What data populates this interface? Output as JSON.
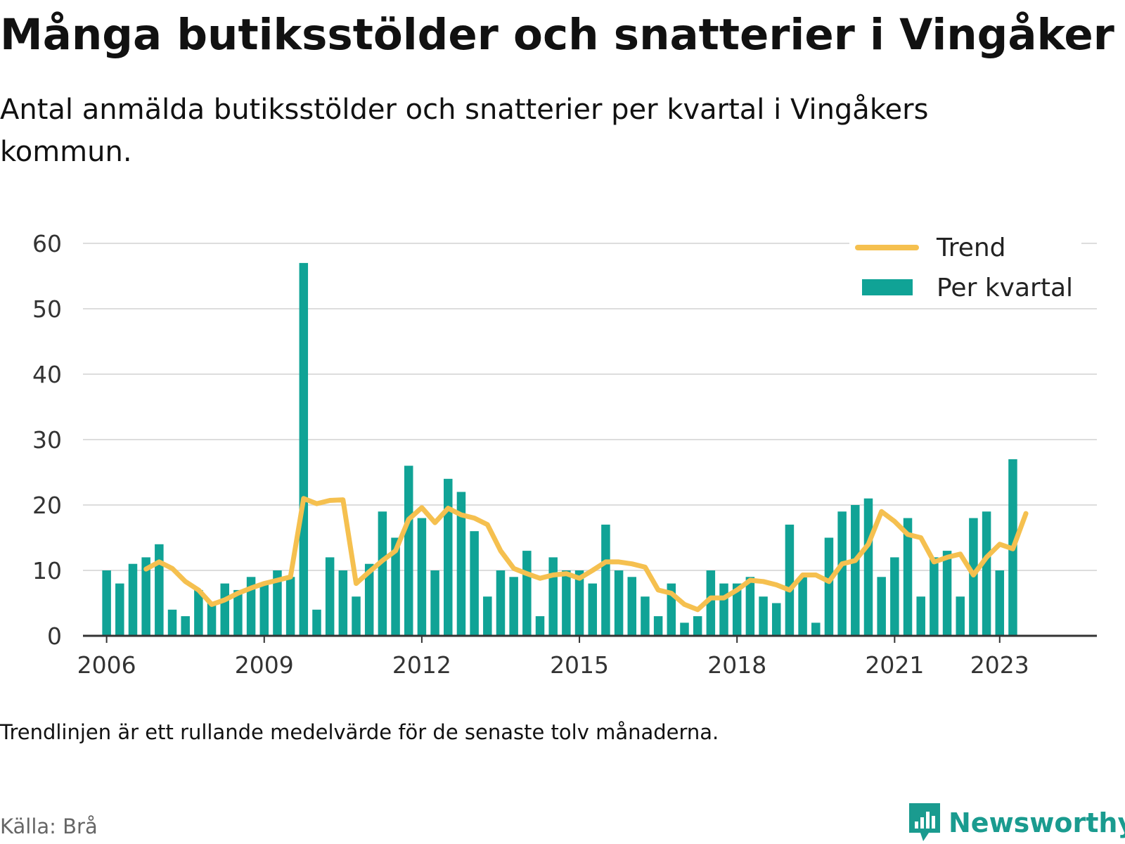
{
  "title": "Många butiksstölder och snatterier i Vingåker",
  "subtitle": "Antal anmälda butiksstölder och snatterier per kvartal i Vingåkers kommun.",
  "footnote": "Trendlinjen är ett rullande medelvärde för de senaste tolv månaderna.",
  "source": "Källa: Brå",
  "brand": "Newsworthy",
  "colors": {
    "bars": "#10a396",
    "trend": "#f5c04f",
    "grid": "#dddddd",
    "axis": "#333333"
  },
  "chart_data": {
    "type": "bar",
    "ylim": [
      0,
      60
    ],
    "yticks": [
      0,
      10,
      20,
      30,
      40,
      50,
      60
    ],
    "xticks": [
      {
        "label": "2006",
        "year": 2006.0
      },
      {
        "label": "2009",
        "year": 2009.0
      },
      {
        "label": "2012",
        "year": 2012.0
      },
      {
        "label": "2015",
        "year": 2015.0
      },
      {
        "label": "2018",
        "year": 2018.0
      },
      {
        "label": "2021",
        "year": 2021.0
      },
      {
        "label": "2023",
        "year": 2023.0
      }
    ],
    "grid": true,
    "legend_position": "top-right",
    "series": [
      {
        "name": "Per kvartal",
        "type": "bar",
        "x": [
          2006.0,
          2006.25,
          2006.5,
          2006.75,
          2007.0,
          2007.25,
          2007.5,
          2007.75,
          2008.0,
          2008.25,
          2008.5,
          2008.75,
          2009.0,
          2009.25,
          2009.5,
          2009.75,
          2010.0,
          2010.25,
          2010.5,
          2010.75,
          2011.0,
          2011.25,
          2011.5,
          2011.75,
          2012.0,
          2012.25,
          2012.5,
          2012.75,
          2013.0,
          2013.25,
          2013.5,
          2013.75,
          2014.0,
          2014.25,
          2014.5,
          2014.75,
          2015.0,
          2015.25,
          2015.5,
          2015.75,
          2016.0,
          2016.25,
          2016.5,
          2016.75,
          2017.0,
          2017.25,
          2017.5,
          2017.75,
          2018.0,
          2018.25,
          2018.5,
          2018.75,
          2019.0,
          2019.25,
          2019.5,
          2019.75,
          2020.0,
          2020.25,
          2020.5,
          2020.75,
          2021.0,
          2021.25,
          2021.5,
          2021.75,
          2022.0,
          2022.25,
          2022.5,
          2022.75,
          2023.0,
          2023.25,
          2023.5
        ],
        "values": [
          10,
          8,
          11,
          12,
          14,
          4,
          3,
          7,
          5,
          8,
          7,
          9,
          8,
          10,
          9,
          57,
          4,
          12,
          10,
          6,
          11,
          19,
          15,
          26,
          18,
          10,
          24,
          22,
          16,
          6,
          10,
          9,
          13,
          3,
          12,
          10,
          10,
          8,
          17,
          10,
          9,
          6,
          3,
          8,
          2,
          3,
          10,
          8,
          8,
          9,
          6,
          5,
          17,
          9,
          2,
          15,
          19,
          20,
          21,
          9,
          12,
          18,
          6,
          12,
          13,
          6,
          18,
          19,
          10,
          27,
          0
        ]
      },
      {
        "name": "Trend",
        "type": "line",
        "x": [
          2006.75,
          2007.0,
          2007.25,
          2007.5,
          2007.75,
          2008.0,
          2008.25,
          2008.5,
          2008.75,
          2009.0,
          2009.25,
          2009.5,
          2009.75,
          2010.0,
          2010.25,
          2010.5,
          2010.75,
          2011.0,
          2011.25,
          2011.5,
          2011.75,
          2012.0,
          2012.25,
          2012.5,
          2012.75,
          2013.0,
          2013.25,
          2013.5,
          2013.75,
          2014.0,
          2014.25,
          2014.5,
          2014.75,
          2015.0,
          2015.25,
          2015.5,
          2015.75,
          2016.0,
          2016.25,
          2016.5,
          2016.75,
          2017.0,
          2017.25,
          2017.5,
          2017.75,
          2018.0,
          2018.25,
          2018.5,
          2018.75,
          2019.0,
          2019.25,
          2019.5,
          2019.75,
          2020.0,
          2020.25,
          2020.5,
          2020.75,
          2021.0,
          2021.25,
          2021.5,
          2021.75,
          2022.0,
          2022.25,
          2022.5,
          2022.75,
          2023.0,
          2023.25,
          2023.5
        ],
        "values": [
          10.2,
          11.3,
          10.3,
          8.3,
          7.0,
          4.8,
          5.5,
          6.5,
          7.3,
          8.0,
          8.5,
          9.0,
          21.0,
          20.2,
          20.7,
          20.8,
          8.0,
          9.8,
          11.5,
          13.0,
          17.8,
          19.6,
          17.3,
          19.5,
          18.5,
          18.0,
          17.0,
          13.0,
          10.3,
          9.5,
          8.8,
          9.3,
          9.5,
          8.8,
          10.0,
          11.3,
          11.3,
          11.0,
          10.5,
          7.0,
          6.5,
          4.8,
          4.0,
          5.8,
          5.8,
          7.0,
          8.5,
          8.3,
          7.8,
          7.0,
          9.3,
          9.3,
          8.3,
          11.0,
          11.5,
          14.0,
          19.0,
          17.5,
          15.5,
          15.0,
          11.3,
          12.0,
          12.5,
          9.3,
          12.0,
          14.0,
          13.3,
          18.7
        ]
      }
    ]
  }
}
